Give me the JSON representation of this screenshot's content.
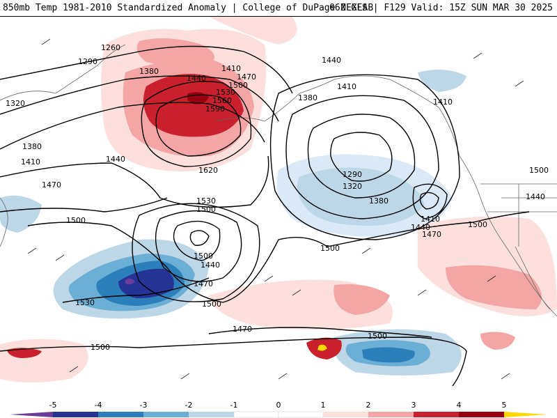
{
  "header": {
    "title_left": "850mb Temp 1981-2010 Standardized Anomaly | College of DuPage NEXLAB",
    "title_right": "06Z GFS | F129 Valid: 15Z SUN MAR 30 2025"
  },
  "colors": {
    "neg5": "#6a3d9a",
    "neg4": "#253494",
    "neg3": "#2c7fb8",
    "neg2": "#6baed6",
    "neg1": "#bdd7e7",
    "neg05": "#dbe9f6",
    "pos05": "#fde0dd",
    "pos1": "#f4a5a5",
    "pos2": "#e86a6a",
    "pos3": "#c8212b",
    "pos4": "#99000d",
    "pos5": "#ffd700",
    "contour": "#000000",
    "coast": "#666666"
  },
  "colorbar": {
    "ticks": [
      "-5",
      "-4",
      "-3",
      "-2",
      "-1",
      "0",
      "1",
      "2",
      "3",
      "4",
      "5"
    ]
  },
  "contour_labels": [
    "1260",
    "1290",
    "1320",
    "1380",
    "1410",
    "1440",
    "1470",
    "1500",
    "1530",
    "1560",
    "1590",
    "1620",
    "1380",
    "1410",
    "1440",
    "1470",
    "1500",
    "1530",
    "1500",
    "1440",
    "1500",
    "1470",
    "1530",
    "1500",
    "1410",
    "1440",
    "1380",
    "1290",
    "1320",
    "1380",
    "1410",
    "1440",
    "1470",
    "1500",
    "1500",
    "1500",
    "1410",
    "1440",
    "1470",
    "1500",
    "1500",
    "1500",
    "1500",
    "1470",
    "1440",
    "1410",
    "1500",
    "1500"
  ]
}
